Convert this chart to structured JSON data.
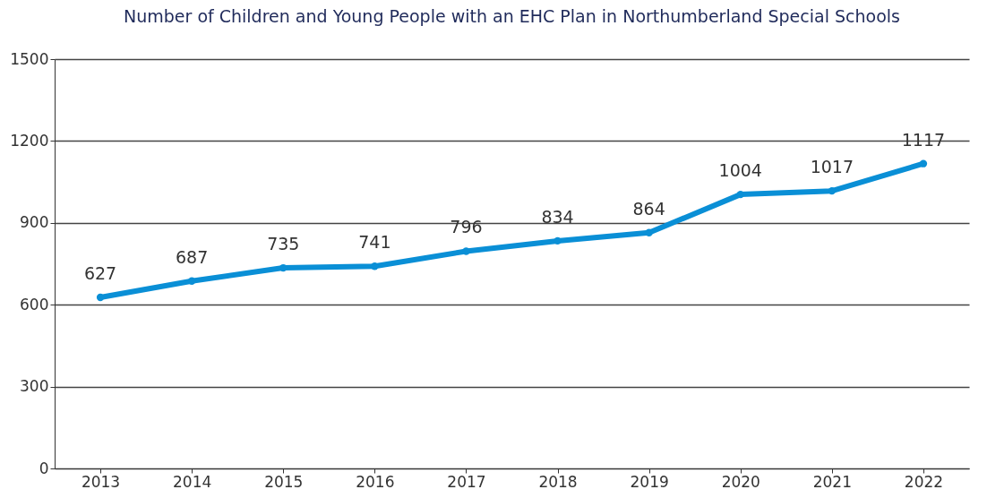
{
  "chart_data": {
    "type": "line",
    "title": "Number of Children and Young People with an EHC Plan in Northumberland Special Schools",
    "categories": [
      "2013",
      "2014",
      "2015",
      "2016",
      "2017",
      "2018",
      "2019",
      "2020",
      "2021",
      "2022"
    ],
    "series": [
      {
        "color": "#0a8fd6",
        "values": [
          627,
          687,
          735,
          741,
          796,
          834,
          864,
          1004,
          1017,
          1117
        ]
      }
    ],
    "ylim": [
      0,
      1500
    ],
    "yticks": [
      0,
      300,
      600,
      900,
      1200,
      1500
    ],
    "grid": "y",
    "marker": "circle",
    "line_style": "solid",
    "data_labels": true
  }
}
